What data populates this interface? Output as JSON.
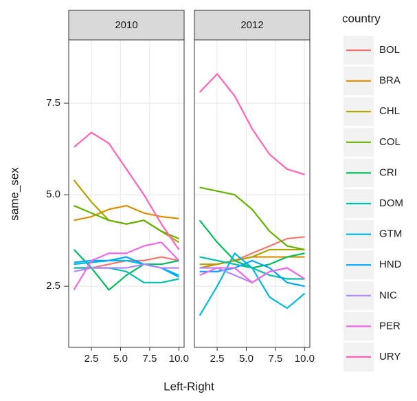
{
  "chart_data": {
    "type": "line",
    "x_label": "Left-Right",
    "y_label": "same_sex",
    "legend_title": "country",
    "x": [
      1,
      2.5,
      4,
      5.5,
      7,
      8.5,
      10
    ],
    "xlim": [
      0.55,
      10.45
    ],
    "xticks": [
      2.5,
      {
        "value": 5,
        "label": "5.0"
      },
      7.5,
      {
        "value": 10,
        "label": "10.0"
      }
    ],
    "ylim": [
      0.83,
      9.23
    ],
    "yticks": [
      2.5,
      {
        "value": 5,
        "label": "5.0"
      },
      7.5
    ],
    "grid": true,
    "series": [
      {
        "name": "BOL",
        "color": "#F8766D"
      },
      {
        "name": "BRA",
        "color": "#DB8E00"
      },
      {
        "name": "CHL",
        "color": "#AEA200"
      },
      {
        "name": "COL",
        "color": "#64B200"
      },
      {
        "name": "CRI",
        "color": "#00BD5C"
      },
      {
        "name": "DOM",
        "color": "#00C1A7"
      },
      {
        "name": "GTM",
        "color": "#00BADE"
      },
      {
        "name": "HND",
        "color": "#00A6FF"
      },
      {
        "name": "NIC",
        "color": "#B385FF"
      },
      {
        "name": "PER",
        "color": "#EF67EB"
      },
      {
        "name": "URY",
        "color": "#FF63B6"
      }
    ],
    "panels": [
      {
        "title": "2010",
        "values": [
          [
            3.0,
            3.0,
            3.1,
            3.2,
            3.2,
            3.3,
            3.2
          ],
          [
            4.3,
            4.4,
            4.6,
            4.7,
            4.5,
            4.4,
            4.35
          ],
          [
            5.4,
            4.8,
            4.3,
            4.2,
            4.3,
            4.0,
            3.7
          ],
          [
            4.7,
            4.5,
            4.3,
            4.2,
            4.3,
            4.0,
            3.8
          ],
          [
            3.5,
            3.0,
            2.4,
            2.8,
            3.1,
            3.1,
            3.2
          ],
          [
            3.0,
            3.0,
            3.0,
            2.9,
            2.6,
            2.6,
            2.7
          ],
          [
            3.1,
            3.15,
            3.2,
            3.2,
            3.1,
            3.0,
            2.8
          ],
          [
            3.15,
            3.2,
            3.2,
            3.3,
            3.1,
            3.0,
            2.75
          ],
          [
            2.9,
            3.0,
            3.0,
            3.0,
            3.1,
            3.0,
            3.0
          ],
          [
            2.4,
            3.2,
            3.4,
            3.4,
            3.6,
            3.7,
            3.2
          ],
          [
            6.3,
            6.7,
            6.4,
            5.7,
            5.0,
            4.2,
            3.5
          ]
        ]
      },
      {
        "title": "2012",
        "values": [
          [
            3.0,
            3.1,
            3.2,
            3.4,
            3.6,
            3.8,
            3.85
          ],
          [
            3.0,
            3.1,
            3.2,
            3.3,
            3.3,
            3.3,
            3.3
          ],
          [
            3.1,
            3.1,
            3.2,
            3.3,
            3.5,
            3.5,
            3.5
          ],
          [
            5.2,
            5.1,
            5.0,
            4.6,
            4.0,
            3.6,
            3.5
          ],
          [
            4.3,
            3.7,
            3.2,
            3.0,
            3.1,
            3.3,
            3.4
          ],
          [
            3.3,
            3.2,
            3.1,
            3.0,
            2.8,
            2.7,
            2.7
          ],
          [
            1.7,
            2.5,
            3.4,
            3.0,
            2.2,
            1.9,
            2.3
          ],
          [
            2.9,
            2.9,
            3.0,
            3.2,
            3.0,
            2.6,
            2.5
          ],
          [
            3.0,
            3.0,
            2.8,
            2.6,
            2.9,
            3.0,
            2.7
          ],
          [
            2.8,
            3.0,
            3.0,
            2.6,
            2.9,
            3.0,
            2.7
          ],
          [
            7.8,
            8.3,
            7.7,
            6.8,
            6.1,
            5.7,
            5.55
          ]
        ]
      }
    ]
  }
}
